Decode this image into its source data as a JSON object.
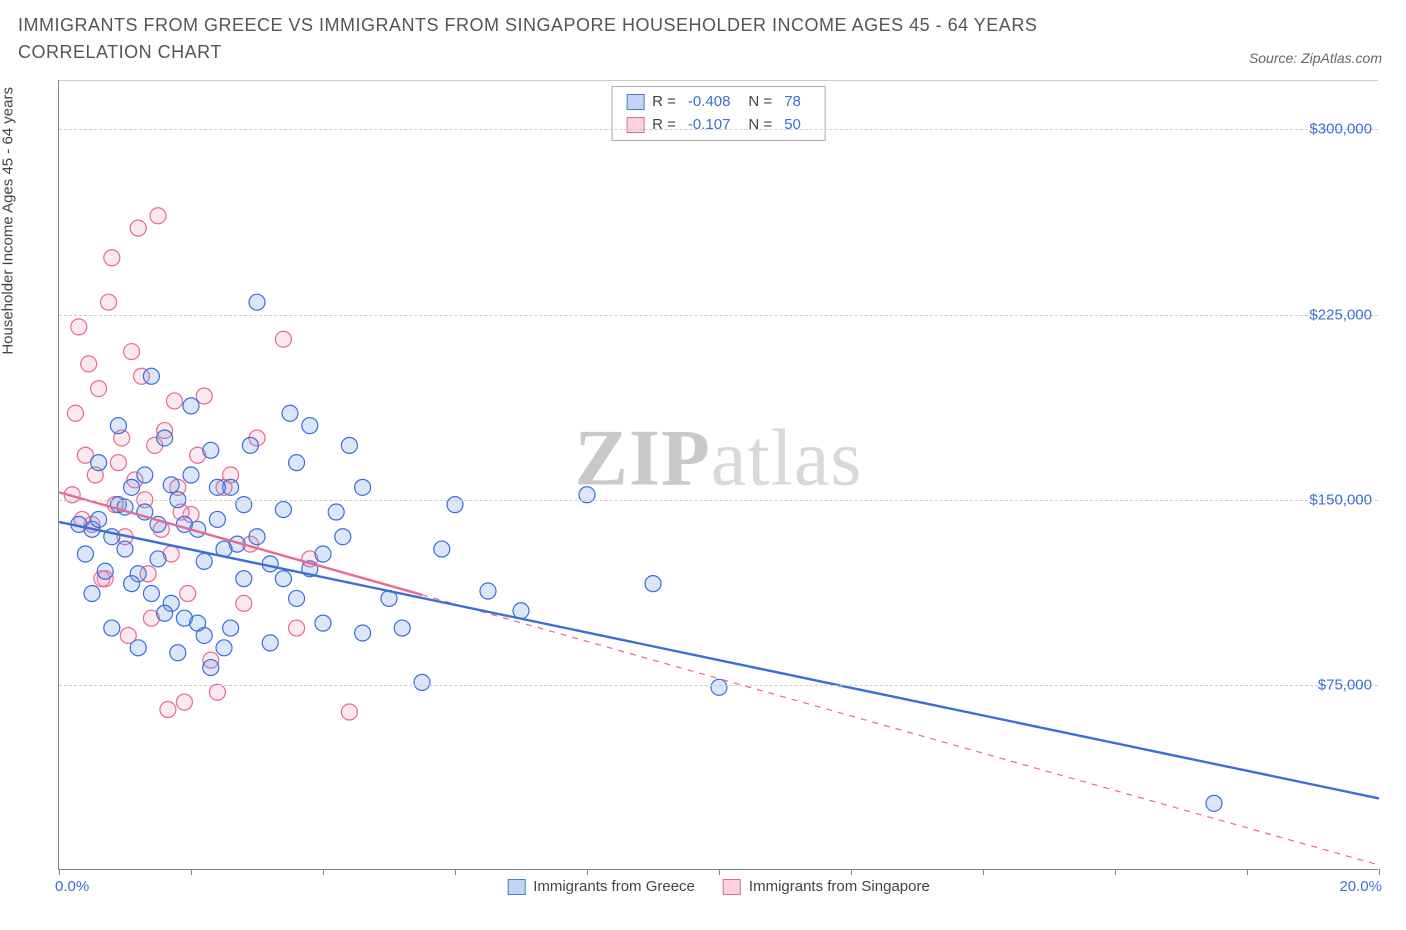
{
  "header": {
    "title": "IMMIGRANTS FROM GREECE VS IMMIGRANTS FROM SINGAPORE HOUSEHOLDER INCOME AGES 45 - 64 YEARS CORRELATION CHART",
    "source": "Source: ZipAtlas.com"
  },
  "chart": {
    "type": "scatter",
    "y_axis_label": "Householder Income Ages 45 - 64 years",
    "xlim": [
      0,
      20
    ],
    "ylim": [
      0,
      320000
    ],
    "x_tick_positions": [
      0,
      2,
      4,
      6,
      8,
      10,
      12,
      14,
      16,
      18,
      20
    ],
    "x_range_labels": {
      "min": "0.0%",
      "max": "20.0%"
    },
    "y_ticks": [
      {
        "value": 75000,
        "label": "$75,000"
      },
      {
        "value": 150000,
        "label": "$150,000"
      },
      {
        "value": 225000,
        "label": "$225,000"
      },
      {
        "value": 300000,
        "label": "$300,000"
      }
    ],
    "grid_color": "#cccccc",
    "background_color": "#ffffff",
    "marker_radius": 8,
    "marker_stroke_width": 1.2,
    "marker_fill_opacity": 0.25,
    "trend_line_width": 2.4,
    "series": {
      "greece": {
        "label": "Immigrants from Greece",
        "color_stroke": "#3b6fd6",
        "color_fill": "#6a9be8",
        "R": "-0.408",
        "N": "78",
        "trend": {
          "x1": 0,
          "y1": 141000,
          "x2": 20,
          "y2": 29000,
          "dash": "solid"
        },
        "points": [
          [
            0.3,
            140000
          ],
          [
            0.5,
            138000
          ],
          [
            0.6,
            142000
          ],
          [
            0.8,
            135000
          ],
          [
            0.9,
            148000
          ],
          [
            1.0,
            130000
          ],
          [
            1.1,
            155000
          ],
          [
            1.2,
            120000
          ],
          [
            1.3,
            160000
          ],
          [
            1.4,
            112000
          ],
          [
            1.5,
            140000
          ],
          [
            1.6,
            175000
          ],
          [
            1.7,
            108000
          ],
          [
            1.8,
            150000
          ],
          [
            1.9,
            102000
          ],
          [
            2.0,
            188000
          ],
          [
            2.1,
            138000
          ],
          [
            2.2,
            95000
          ],
          [
            2.3,
            170000
          ],
          [
            2.4,
            142000
          ],
          [
            2.5,
            90000
          ],
          [
            2.6,
            155000
          ],
          [
            2.7,
            132000
          ],
          [
            2.8,
            118000
          ],
          [
            2.9,
            172000
          ],
          [
            3.0,
            230000
          ],
          [
            3.2,
            124000
          ],
          [
            3.4,
            146000
          ],
          [
            3.5,
            185000
          ],
          [
            3.6,
            110000
          ],
          [
            3.8,
            180000
          ],
          [
            4.0,
            128000
          ],
          [
            4.2,
            145000
          ],
          [
            4.4,
            172000
          ],
          [
            4.6,
            96000
          ],
          [
            5.0,
            110000
          ],
          [
            5.5,
            76000
          ],
          [
            6.0,
            148000
          ],
          [
            6.5,
            113000
          ],
          [
            8.0,
            152000
          ],
          [
            9.0,
            116000
          ],
          [
            10.0,
            74000
          ],
          [
            17.5,
            27000
          ],
          [
            0.4,
            128000
          ],
          [
            0.5,
            112000
          ],
          [
            0.6,
            165000
          ],
          [
            0.7,
            121000
          ],
          [
            0.8,
            98000
          ],
          [
            0.9,
            180000
          ],
          [
            1.0,
            147000
          ],
          [
            1.1,
            116000
          ],
          [
            1.2,
            90000
          ],
          [
            1.3,
            145000
          ],
          [
            1.4,
            200000
          ],
          [
            1.5,
            126000
          ],
          [
            1.6,
            104000
          ],
          [
            1.7,
            156000
          ],
          [
            1.8,
            88000
          ],
          [
            1.9,
            140000
          ],
          [
            2.0,
            160000
          ],
          [
            2.1,
            100000
          ],
          [
            2.2,
            125000
          ],
          [
            2.3,
            82000
          ],
          [
            2.4,
            155000
          ],
          [
            2.5,
            130000
          ],
          [
            2.6,
            98000
          ],
          [
            2.8,
            148000
          ],
          [
            3.0,
            135000
          ],
          [
            3.2,
            92000
          ],
          [
            3.4,
            118000
          ],
          [
            3.6,
            165000
          ],
          [
            3.8,
            122000
          ],
          [
            4.0,
            100000
          ],
          [
            4.3,
            135000
          ],
          [
            4.6,
            155000
          ],
          [
            5.2,
            98000
          ],
          [
            5.8,
            130000
          ],
          [
            7.0,
            105000
          ]
        ]
      },
      "singapore": {
        "label": "Immigrants from Singapore",
        "color_stroke": "#e56a94",
        "color_fill": "#f4a3be",
        "R": "-0.107",
        "N": "50",
        "trend": {
          "x1": 0,
          "y1": 153000,
          "x2": 20,
          "y2": 2000,
          "dash": "dashed",
          "solid_until": 5.5
        },
        "points": [
          [
            0.2,
            152000
          ],
          [
            0.3,
            220000
          ],
          [
            0.4,
            168000
          ],
          [
            0.5,
            140000
          ],
          [
            0.6,
            195000
          ],
          [
            0.7,
            118000
          ],
          [
            0.8,
            248000
          ],
          [
            0.9,
            165000
          ],
          [
            1.0,
            135000
          ],
          [
            1.1,
            210000
          ],
          [
            1.2,
            260000
          ],
          [
            1.3,
            150000
          ],
          [
            1.4,
            102000
          ],
          [
            1.5,
            265000
          ],
          [
            1.6,
            178000
          ],
          [
            1.7,
            128000
          ],
          [
            1.8,
            155000
          ],
          [
            1.9,
            68000
          ],
          [
            2.0,
            144000
          ],
          [
            2.2,
            192000
          ],
          [
            2.4,
            72000
          ],
          [
            2.6,
            160000
          ],
          [
            2.8,
            108000
          ],
          [
            3.0,
            175000
          ],
          [
            3.4,
            215000
          ],
          [
            3.8,
            126000
          ],
          [
            4.4,
            64000
          ],
          [
            0.25,
            185000
          ],
          [
            0.35,
            142000
          ],
          [
            0.45,
            205000
          ],
          [
            0.55,
            160000
          ],
          [
            0.65,
            118000
          ],
          [
            0.75,
            230000
          ],
          [
            0.85,
            148000
          ],
          [
            0.95,
            175000
          ],
          [
            1.05,
            95000
          ],
          [
            1.15,
            158000
          ],
          [
            1.25,
            200000
          ],
          [
            1.35,
            120000
          ],
          [
            1.45,
            172000
          ],
          [
            1.55,
            138000
          ],
          [
            1.65,
            65000
          ],
          [
            1.75,
            190000
          ],
          [
            1.85,
            145000
          ],
          [
            1.95,
            112000
          ],
          [
            2.1,
            168000
          ],
          [
            2.3,
            85000
          ],
          [
            2.5,
            155000
          ],
          [
            2.9,
            132000
          ],
          [
            3.6,
            98000
          ]
        ]
      }
    },
    "bottom_legend": [
      "Immigrants from Greece",
      "Immigrants from Singapore"
    ],
    "watermark": {
      "bold": "ZIP",
      "rest": "atlas"
    },
    "label_color": "#3b6fd6",
    "axis_text_color": "#444444"
  }
}
